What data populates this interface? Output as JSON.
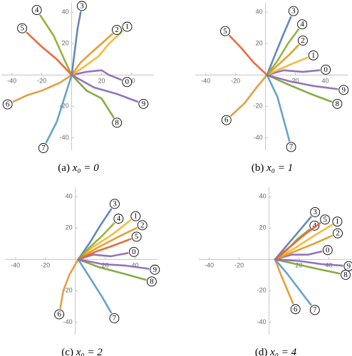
{
  "chart_data": [
    {
      "type": "line",
      "label": "(a)",
      "caption": "x₀ = 0",
      "xlim": [
        -47,
        55
      ],
      "ylim": [
        -48,
        46
      ],
      "xticks": [
        -40,
        -20,
        20,
        40
      ],
      "yticks": [
        -40,
        -20,
        20,
        40
      ],
      "series": [
        {
          "name": "0",
          "color": "#8f6cb8",
          "x": [
            0,
            10,
            20,
            25,
            33
          ],
          "y": [
            0,
            2,
            3,
            0,
            -3
          ]
        },
        {
          "name": "1",
          "color": "#f5b731",
          "x": [
            0,
            8,
            18,
            25,
            34
          ],
          "y": [
            0,
            5,
            12,
            20,
            28
          ]
        },
        {
          "name": "2",
          "color": "#e19c24",
          "x": [
            0,
            6,
            14,
            20,
            27
          ],
          "y": [
            0,
            8,
            15,
            20,
            26
          ]
        },
        {
          "name": "3",
          "color": "#5e81b5",
          "x": [
            0,
            2,
            4,
            6
          ],
          "y": [
            0,
            15,
            30,
            40
          ]
        },
        {
          "name": "4",
          "color": "#8fb032",
          "x": [
            0,
            -5,
            -12,
            -21
          ],
          "y": [
            0,
            10,
            25,
            38
          ]
        },
        {
          "name": "5",
          "color": "#eb6235",
          "x": [
            0,
            -10,
            -20,
            -30
          ],
          "y": [
            0,
            10,
            18,
            27
          ]
        },
        {
          "name": "6",
          "color": "#e09a38",
          "x": [
            0,
            -8,
            -20,
            -30,
            -39
          ],
          "y": [
            0,
            -5,
            -10,
            -13,
            -17
          ]
        },
        {
          "name": "7",
          "color": "#5d9ec7",
          "x": [
            0,
            -5,
            -10,
            -17
          ],
          "y": [
            0,
            -15,
            -30,
            -43
          ]
        },
        {
          "name": "8",
          "color": "#7fa83a",
          "x": [
            0,
            10,
            20,
            28
          ],
          "y": [
            0,
            -10,
            -15,
            -27
          ]
        },
        {
          "name": "9",
          "color": "#8f6cb8",
          "x": [
            0,
            15,
            30,
            44
          ],
          "y": [
            0,
            -8,
            -12,
            -17
          ]
        }
      ]
    },
    {
      "type": "line",
      "label": "(b)",
      "caption": "x₀ = 1",
      "xlim": [
        -47,
        55
      ],
      "ylim": [
        -48,
        46
      ],
      "xticks": [
        -40,
        -20,
        20,
        40
      ],
      "yticks": [
        -40,
        -20,
        20,
        40
      ],
      "series": [
        {
          "name": "0",
          "color": "#8f6cb8",
          "x": [
            1,
            12,
            25,
            36
          ],
          "y": [
            0,
            3,
            2,
            3
          ]
        },
        {
          "name": "1",
          "color": "#f5b731",
          "x": [
            1,
            10,
            20,
            28
          ],
          "y": [
            0,
            4,
            8,
            11
          ]
        },
        {
          "name": "2",
          "color": "#e19c24",
          "x": [
            1,
            8,
            16,
            22
          ],
          "y": [
            0,
            6,
            13,
            19
          ]
        },
        {
          "name": "3",
          "color": "#5e81b5",
          "x": [
            1,
            6,
            12,
            17
          ],
          "y": [
            0,
            12,
            26,
            37
          ]
        },
        {
          "name": "4",
          "color": "#8fb032",
          "x": [
            1,
            8,
            15,
            22
          ],
          "y": [
            0,
            9,
            20,
            29
          ]
        },
        {
          "name": "5",
          "color": "#eb6235",
          "x": [
            1,
            -8,
            -16,
            -24
          ],
          "y": [
            0,
            8,
            17,
            25
          ]
        },
        {
          "name": "6",
          "color": "#e09a38",
          "x": [
            1,
            -6,
            -14,
            -23
          ],
          "y": [
            0,
            -8,
            -18,
            -26
          ]
        },
        {
          "name": "7",
          "color": "#5d9ec7",
          "x": [
            1,
            8,
            12,
            16
          ],
          "y": [
            0,
            -14,
            -28,
            -42
          ]
        },
        {
          "name": "8",
          "color": "#7fa83a",
          "x": [
            1,
            15,
            30,
            44
          ],
          "y": [
            0,
            -6,
            -12,
            -17
          ]
        },
        {
          "name": "9",
          "color": "#8f6cb8",
          "x": [
            1,
            16,
            32,
            48
          ],
          "y": [
            0,
            -4,
            -7,
            -9
          ]
        }
      ]
    },
    {
      "type": "line",
      "label": "(c)",
      "caption": "x₀ = 2",
      "xlim": [
        -47,
        55
      ],
      "ylim": [
        -48,
        46
      ],
      "xticks": [
        -40,
        -20,
        20,
        40
      ],
      "yticks": [
        -40,
        -20,
        20,
        40
      ],
      "series": [
        {
          "name": "0",
          "color": "#8f6cb8",
          "x": [
            2,
            12,
            24,
            35
          ],
          "y": [
            0,
            3,
            2,
            4
          ]
        },
        {
          "name": "1",
          "color": "#f5b731",
          "x": [
            2,
            12,
            25,
            37
          ],
          "y": [
            0,
            8,
            16,
            25
          ]
        },
        {
          "name": "2",
          "color": "#e19c24",
          "x": [
            2,
            14,
            28,
            41
          ],
          "y": [
            0,
            7,
            14,
            20
          ]
        },
        {
          "name": "3",
          "color": "#5e81b5",
          "x": [
            2,
            10,
            17,
            24
          ],
          "y": [
            0,
            11,
            22,
            32
          ]
        },
        {
          "name": "4",
          "color": "#8fb032",
          "x": [
            2,
            10,
            18,
            26
          ],
          "y": [
            0,
            8,
            15,
            23
          ]
        },
        {
          "name": "5",
          "color": "#eb6235",
          "x": [
            2,
            14,
            26,
            37
          ],
          "y": [
            0,
            5,
            9,
            13
          ]
        },
        {
          "name": "6",
          "color": "#e09a38",
          "x": [
            2,
            -4,
            -8,
            -10
          ],
          "y": [
            0,
            -10,
            -20,
            -31
          ]
        },
        {
          "name": "7",
          "color": "#5d9ec7",
          "x": [
            2,
            10,
            18,
            24
          ],
          "y": [
            0,
            -12,
            -24,
            -34
          ]
        },
        {
          "name": "8",
          "color": "#7fa83a",
          "x": [
            2,
            16,
            32,
            47
          ],
          "y": [
            0,
            -5,
            -9,
            -13
          ]
        },
        {
          "name": "9",
          "color": "#8f6cb8",
          "x": [
            2,
            18,
            34,
            49
          ],
          "y": [
            0,
            -3,
            -4,
            -6
          ]
        }
      ]
    },
    {
      "type": "line",
      "label": "(d)",
      "caption": "x₀ = 4",
      "xlim": [
        -47,
        55
      ],
      "ylim": [
        -48,
        46
      ],
      "xticks": [
        -40,
        -20,
        20,
        40
      ],
      "yticks": [
        -40,
        -20,
        20,
        40
      ],
      "series": [
        {
          "name": "0",
          "color": "#8f6cb8",
          "x": [
            4,
            15,
            26,
            35
          ],
          "y": [
            0,
            3,
            3,
            5
          ]
        },
        {
          "name": "1",
          "color": "#f5b731",
          "x": [
            4,
            17,
            30,
            42
          ],
          "y": [
            0,
            7,
            15,
            22
          ]
        },
        {
          "name": "2",
          "color": "#e19c24",
          "x": [
            4,
            17,
            30,
            42
          ],
          "y": [
            0,
            5,
            10,
            15
          ]
        },
        {
          "name": "3",
          "color": "#5e81b5",
          "x": [
            4,
            12,
            20,
            28
          ],
          "y": [
            0,
            9,
            18,
            27
          ]
        },
        {
          "name": "4",
          "color": "#8fb032",
          "x": [
            4,
            12,
            19,
            27
          ],
          "y": [
            0,
            6,
            13,
            19
          ]
        },
        {
          "name": "5",
          "color": "#eb6235",
          "x": [
            4,
            14,
            24,
            34
          ],
          "y": [
            0,
            8,
            16,
            23
          ]
        },
        {
          "name": "6",
          "color": "#e09a38",
          "x": [
            4,
            8,
            12,
            16
          ],
          "y": [
            0,
            -10,
            -19,
            -28
          ]
        },
        {
          "name": "7",
          "color": "#5d9ec7",
          "x": [
            4,
            12,
            20,
            28
          ],
          "y": [
            0,
            -9,
            -19,
            -29
          ]
        },
        {
          "name": "8",
          "color": "#7fa83a",
          "x": [
            4,
            18,
            32,
            47
          ],
          "y": [
            0,
            -3,
            -6,
            -9
          ]
        },
        {
          "name": "9",
          "color": "#8f6cb8",
          "x": [
            4,
            20,
            35,
            49
          ],
          "y": [
            0,
            -1,
            -3,
            -4
          ]
        }
      ]
    }
  ]
}
